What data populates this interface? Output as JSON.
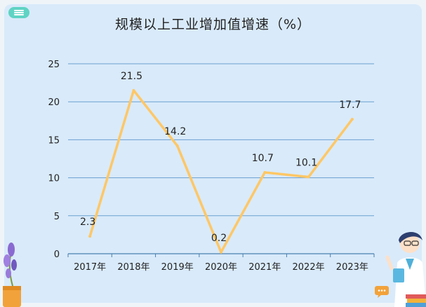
{
  "title": "规模以上工业增加值增速（%）",
  "colors": {
    "line": "#ffc766",
    "grid": "#6a9fd0",
    "panel": "#d9eafa",
    "accent": "#5fd3c4"
  },
  "icons": [
    "menu-icon",
    "lavender-plant-icon",
    "teacher-character-icon",
    "chat-bubble-icon",
    "books-icon"
  ],
  "chart_data": {
    "type": "line",
    "title": "规模以上工业增加值增速（%）",
    "categories": [
      "2017年",
      "2018年",
      "2019年",
      "2020年",
      "2021年",
      "2022年",
      "2023年"
    ],
    "series": [
      {
        "values": [
          2.3,
          21.5,
          14.2,
          0.2,
          10.7,
          10.1,
          17.7
        ]
      }
    ],
    "data_labels": [
      "2.3",
      "21.5",
      "14.2",
      "0.2",
      "10.7",
      "10.1",
      "17.7"
    ],
    "yticks": [
      "0",
      "5",
      "10",
      "15",
      "20",
      "25"
    ],
    "ylim": [
      0,
      25
    ],
    "grid": true,
    "legend": "none"
  }
}
